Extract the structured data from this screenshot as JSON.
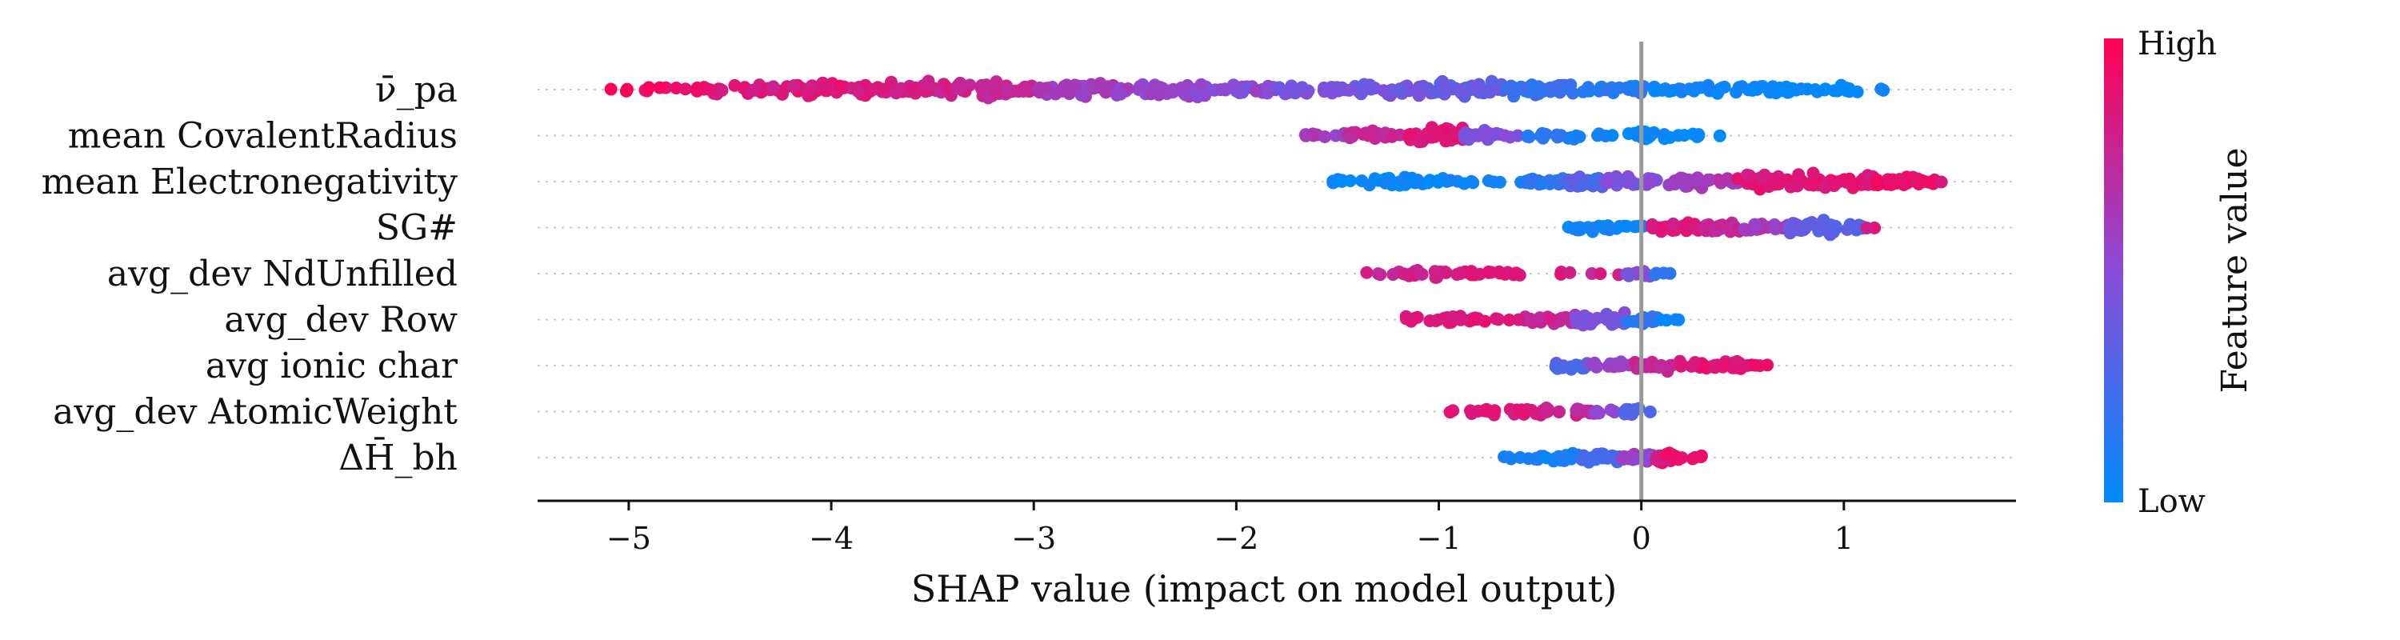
{
  "chart_data": {
    "type": "scatter",
    "subtype": "shap-beeswarm",
    "xlabel": "SHAP value (impact on model output)",
    "xlim": [
      -5.45,
      1.85
    ],
    "xticks": [
      -5,
      -4,
      -3,
      -2,
      -1,
      0,
      1
    ],
    "xtick_labels": [
      "−5",
      "−4",
      "−3",
      "−2",
      "−1",
      "0",
      "1"
    ],
    "zero_line": 0,
    "grid": "dotted horizontal per feature",
    "colorbar": {
      "title": "Feature value",
      "high_label": "High",
      "low_label": "Low",
      "low_color": "#008bfb",
      "mid_color": "#8a4bd8",
      "high_color": "#ff0052",
      "placement": "right"
    },
    "features": [
      {
        "name": "ν̄_pa",
        "clusters": [
          {
            "x": -5.05,
            "v": 0.95,
            "n": 3
          },
          {
            "x": -4.8,
            "v": 0.9,
            "n": 12
          },
          {
            "x": -4.4,
            "v": 0.85,
            "n": 25
          },
          {
            "x": -4.0,
            "v": 0.85,
            "n": 40
          },
          {
            "x": -3.6,
            "v": 0.8,
            "n": 45
          },
          {
            "x": -3.2,
            "v": 0.75,
            "n": 45
          },
          {
            "x": -2.8,
            "v": 0.6,
            "n": 45
          },
          {
            "x": -2.4,
            "v": 0.55,
            "n": 40
          },
          {
            "x": -2.0,
            "v": 0.5,
            "n": 35
          },
          {
            "x": -1.6,
            "v": 0.45,
            "n": 30
          },
          {
            "x": -1.2,
            "v": 0.42,
            "n": 35
          },
          {
            "x": -0.85,
            "v": 0.35,
            "n": 45
          },
          {
            "x": -0.5,
            "v": 0.2,
            "n": 35
          },
          {
            "x": -0.15,
            "v": 0.12,
            "n": 25
          },
          {
            "x": 0.2,
            "v": 0.05,
            "n": 25
          },
          {
            "x": 0.6,
            "v": 0.03,
            "n": 25
          },
          {
            "x": 0.95,
            "v": 0.02,
            "n": 15
          },
          {
            "x": 1.12,
            "v": 0.02,
            "n": 3
          }
        ]
      },
      {
        "name": "mean CovalentRadius",
        "clusters": [
          {
            "x": -1.6,
            "v": 0.6,
            "n": 10
          },
          {
            "x": -1.3,
            "v": 0.75,
            "n": 25
          },
          {
            "x": -1.0,
            "v": 0.85,
            "n": 45
          },
          {
            "x": -0.75,
            "v": 0.45,
            "n": 25
          },
          {
            "x": -0.45,
            "v": 0.15,
            "n": 15
          },
          {
            "x": -0.2,
            "v": 0.08,
            "n": 6
          },
          {
            "x": 0.05,
            "v": 0.02,
            "n": 18
          },
          {
            "x": 0.25,
            "v": 0.02,
            "n": 6
          },
          {
            "x": 0.38,
            "v": 0.02,
            "n": 1
          }
        ]
      },
      {
        "name": "mean Electronegativity",
        "clusters": [
          {
            "x": -1.5,
            "v": 0.02,
            "n": 10
          },
          {
            "x": -1.2,
            "v": 0.03,
            "n": 25
          },
          {
            "x": -0.95,
            "v": 0.03,
            "n": 12
          },
          {
            "x": -0.7,
            "v": 0.05,
            "n": 4
          },
          {
            "x": -0.45,
            "v": 0.15,
            "n": 20
          },
          {
            "x": -0.3,
            "v": 0.3,
            "n": 30
          },
          {
            "x": -0.05,
            "v": 0.45,
            "n": 25
          },
          {
            "x": 0.3,
            "v": 0.6,
            "n": 30
          },
          {
            "x": 0.65,
            "v": 0.85,
            "n": 40
          },
          {
            "x": 1.0,
            "v": 0.88,
            "n": 40
          },
          {
            "x": 1.3,
            "v": 0.9,
            "n": 25
          },
          {
            "x": 1.48,
            "v": 0.92,
            "n": 5
          }
        ]
      },
      {
        "name": "SG#",
        "clusters": [
          {
            "x": -0.3,
            "v": 0.05,
            "n": 12
          },
          {
            "x": -0.1,
            "v": 0.05,
            "n": 15
          },
          {
            "x": 0.2,
            "v": 0.85,
            "n": 25
          },
          {
            "x": 0.4,
            "v": 0.75,
            "n": 25
          },
          {
            "x": 0.6,
            "v": 0.6,
            "n": 20
          },
          {
            "x": 0.85,
            "v": 0.35,
            "n": 40
          },
          {
            "x": 1.05,
            "v": 0.3,
            "n": 15
          },
          {
            "x": 1.15,
            "v": 0.85,
            "n": 2
          }
        ]
      },
      {
        "name": "avg_dev NdUnfilled",
        "clusters": [
          {
            "x": -1.3,
            "v": 0.75,
            "n": 6
          },
          {
            "x": -1.05,
            "v": 0.82,
            "n": 18
          },
          {
            "x": -0.75,
            "v": 0.85,
            "n": 15
          },
          {
            "x": -0.55,
            "v": 0.85,
            "n": 6
          },
          {
            "x": -0.2,
            "v": 0.8,
            "n": 4
          },
          {
            "x": 0.02,
            "v": 0.45,
            "n": 12
          },
          {
            "x": 0.07,
            "v": 0.2,
            "n": 4
          }
        ]
      },
      {
        "name": "avg_dev Row",
        "clusters": [
          {
            "x": -1.1,
            "v": 0.85,
            "n": 12
          },
          {
            "x": -0.8,
            "v": 0.85,
            "n": 18
          },
          {
            "x": -0.45,
            "v": 0.75,
            "n": 25
          },
          {
            "x": -0.2,
            "v": 0.45,
            "n": 25
          },
          {
            "x": 0.05,
            "v": 0.15,
            "n": 18
          },
          {
            "x": 0.12,
            "v": 0.05,
            "n": 4
          }
        ]
      },
      {
        "name": "avg ionic char",
        "clusters": [
          {
            "x": -0.35,
            "v": 0.3,
            "n": 15
          },
          {
            "x": -0.15,
            "v": 0.55,
            "n": 15
          },
          {
            "x": 0.05,
            "v": 0.75,
            "n": 20
          },
          {
            "x": 0.25,
            "v": 0.85,
            "n": 20
          },
          {
            "x": 0.45,
            "v": 0.85,
            "n": 22
          },
          {
            "x": 0.55,
            "v": 0.88,
            "n": 5
          }
        ]
      },
      {
        "name": "avg_dev AtomicWeight",
        "clusters": [
          {
            "x": -0.88,
            "v": 0.88,
            "n": 10
          },
          {
            "x": -0.6,
            "v": 0.85,
            "n": 18
          },
          {
            "x": -0.35,
            "v": 0.75,
            "n": 20
          },
          {
            "x": -0.15,
            "v": 0.55,
            "n": 8
          },
          {
            "x": -0.02,
            "v": 0.3,
            "n": 15
          }
        ]
      },
      {
        "name": "ΔH̄_bh",
        "clusters": [
          {
            "x": -0.6,
            "v": 0.1,
            "n": 8
          },
          {
            "x": -0.4,
            "v": 0.08,
            "n": 20
          },
          {
            "x": -0.2,
            "v": 0.25,
            "n": 25
          },
          {
            "x": 0.0,
            "v": 0.55,
            "n": 25
          },
          {
            "x": 0.12,
            "v": 0.85,
            "n": 30
          },
          {
            "x": 0.22,
            "v": 0.9,
            "n": 8
          }
        ]
      }
    ]
  }
}
